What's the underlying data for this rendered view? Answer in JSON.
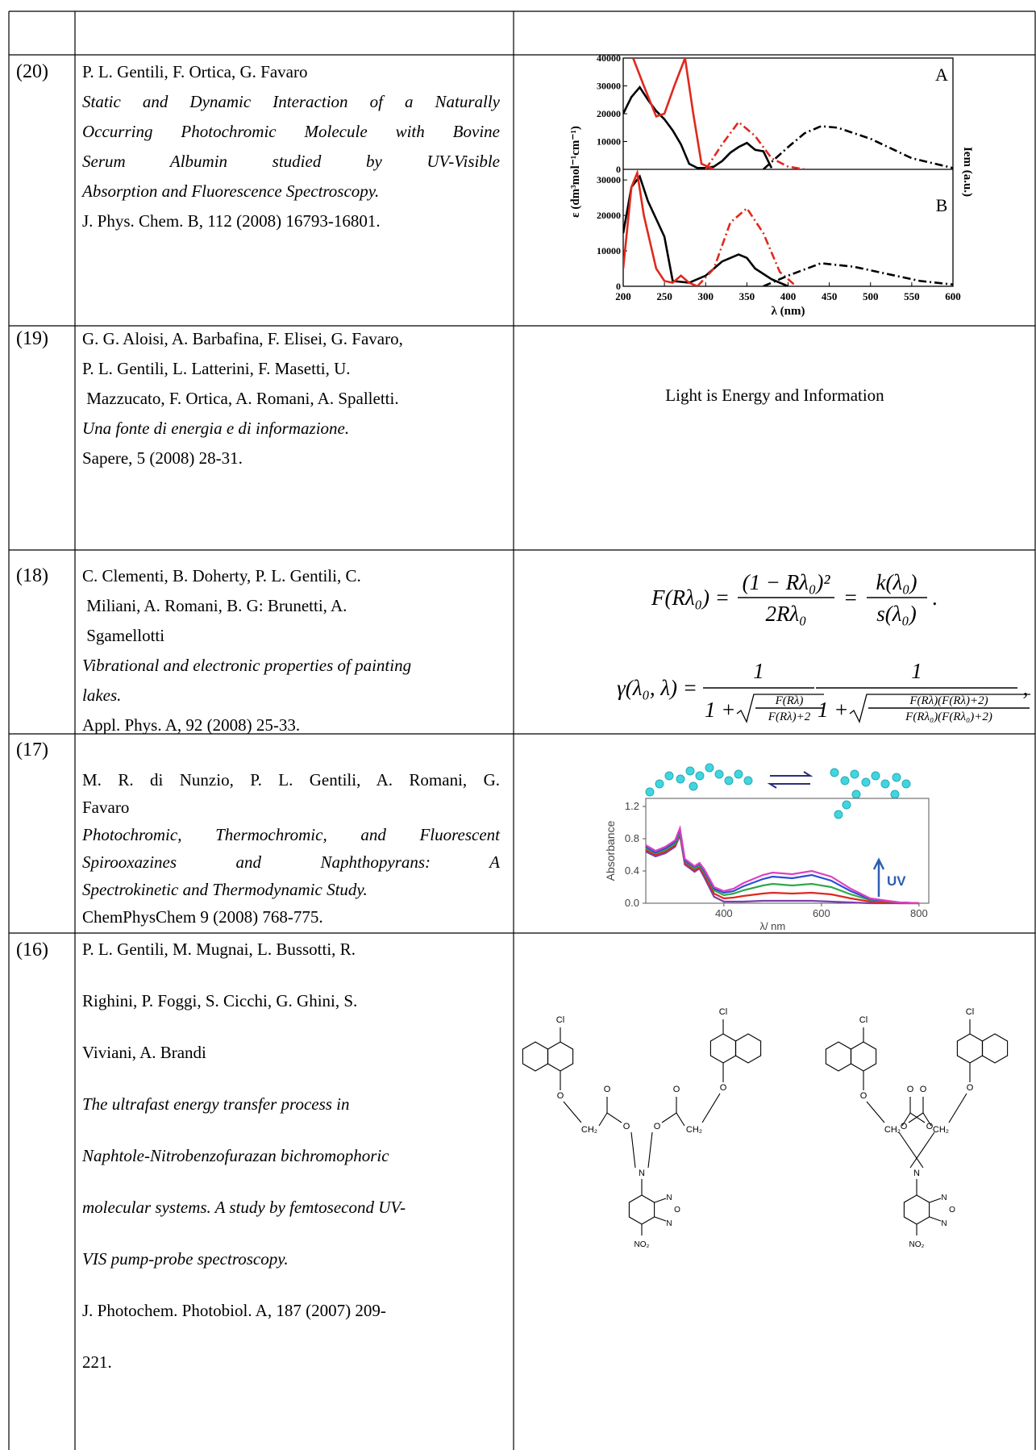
{
  "rows": [
    {
      "number": "(20)",
      "authors": [
        "P. L. Gentili, F. Ortica, G. Favaro"
      ],
      "title": [
        "Static and Dynamic Interaction of a Naturally",
        "Occurring Photochromic Molecule with Bovine",
        "Serum Albumin studied by UV-Visible",
        "Absorption and Fluorescence Spectroscopy."
      ],
      "citation": [
        "J. Phys. Chem. B, 112 (2008) 16793-16801."
      ],
      "figure": {
        "xlim": [
          200,
          600
        ],
        "xticks": [
          200,
          250,
          300,
          350,
          400,
          450,
          500,
          550,
          600
        ],
        "ylabel": "ε (dm³mol⁻¹cm⁻¹)",
        "y2label": "Iem (a.u.)",
        "xlabel": "λ (nm)",
        "panels": [
          {
            "label": "A",
            "ylim": [
              0,
              40000
            ],
            "yticks": [
              0,
              10000,
              20000,
              30000,
              40000
            ],
            "series": [
              {
                "color": "#000000",
                "style": "solid",
                "x": [
                  200,
                  210,
                  220,
                  230,
                  240,
                  250,
                  260,
                  270,
                  280,
                  290,
                  300,
                  310,
                  320,
                  330,
                  340,
                  350,
                  360,
                  370,
                  380
                ],
                "values": [
                  20000,
                  26000,
                  29500,
                  25000,
                  21000,
                  18000,
                  14000,
                  9000,
                  2000,
                  500,
                  500,
                  1000,
                  3000,
                  6000,
                  8000,
                  9500,
                  7000,
                  6500,
                  500
                ]
              },
              {
                "color": "#e0281e",
                "style": "solid",
                "x": [
                  212,
                  225,
                  240,
                  250,
                  262,
                  275,
                  285,
                  295,
                  310
                ],
                "values": [
                  40000,
                  30000,
                  19000,
                  20000,
                  30000,
                  40000,
                  20000,
                  2000,
                  0
                ]
              },
              {
                "color": "#e0281e",
                "style": "dashdot",
                "x": [
                  300,
                  320,
                  340,
                  360,
                  380,
                  400,
                  420
                ],
                "values": [
                  0,
                  9000,
                  17000,
                  12000,
                  4000,
                  1000,
                  0
                ]
              },
              {
                "color": "#000000",
                "style": "dashdot",
                "x": [
                  370,
                  400,
                  420,
                  440,
                  460,
                  500,
                  550,
                  600
                ],
                "values": [
                  0,
                  8000,
                  13000,
                  15500,
                  15000,
                  11000,
                  4000,
                  500
                ]
              }
            ]
          },
          {
            "label": "B",
            "ylim": [
              0,
              33000
            ],
            "yticks": [
              0,
              10000,
              20000,
              30000
            ],
            "series": [
              {
                "color": "#000000",
                "style": "solid",
                "x": [
                  200,
                  210,
                  220,
                  230,
                  240,
                  250,
                  260,
                  280,
                  300,
                  320,
                  340,
                  350,
                  360,
                  380,
                  400
                ],
                "values": [
                  15000,
                  28000,
                  31000,
                  24000,
                  19000,
                  14000,
                  1500,
                  1000,
                  3000,
                  7000,
                  9000,
                  8000,
                  5000,
                  2000,
                  0
                ]
              },
              {
                "color": "#e0281e",
                "style": "solid",
                "x": [
                  200,
                  210,
                  217,
                  225,
                  240,
                  250,
                  260,
                  270,
                  280,
                  290
                ],
                "values": [
                  5000,
                  28000,
                  32000,
                  20000,
                  5000,
                  1500,
                  1000,
                  3000,
                  1000,
                  0
                ]
              },
              {
                "color": "#e0281e",
                "style": "dashdot",
                "x": [
                  290,
                  310,
                  330,
                  350,
                  370,
                  390,
                  410
                ],
                "values": [
                  0,
                  5000,
                  18000,
                  22000,
                  15000,
                  4000,
                  0
                ]
              },
              {
                "color": "#000000",
                "style": "dashdot",
                "x": [
                  370,
                  400,
                  440,
                  480,
                  520,
                  560,
                  600
                ],
                "values": [
                  0,
                  3000,
                  6500,
                  5500,
                  3500,
                  1500,
                  500
                ]
              }
            ]
          }
        ]
      }
    },
    {
      "number": "(19)",
      "authors": [
        "G. G. Aloisi, A. Barbafina, F. Elisei, G. Favaro,",
        "P. L. Gentili, L. Latterini, F. Masetti, U.",
        " Mazzucato, F. Ortica, A. Romani, A. Spalletti."
      ],
      "title": [
        "Una fonte di energia e di informazione."
      ],
      "citation": [
        "Sapere, 5 (2008) 28-31."
      ],
      "figure": {
        "text": "Light is Energy and Information"
      }
    },
    {
      "number": "(18)",
      "authors": [
        "C. Clementi, B. Doherty, P. L. Gentili, C.",
        " Miliani, A. Romani, B. G: Brunetti, A.",
        " Sgamellotti"
      ],
      "title": [
        "Vibrational and electronic properties of painting",
        "lakes."
      ],
      "citation": [
        "Appl. Phys. A, 92 (2008) 25-33."
      ],
      "figure": {
        "equations": [
          {
            "lhs": "F(Rλ₀) =",
            "frac1": {
              "num": "(1 − Rλ₀)²",
              "den": "2Rλ₀"
            },
            "eq": "=",
            "frac2": {
              "num": "k(λ₀)",
              "den": "s(λ₀)"
            },
            "end": "."
          },
          {
            "lhs": "γ(λ₀, λ) =",
            "frac1": {
              "num": "1",
              "den": "1 +",
              "root": {
                "num": "F(Rλ)",
                "den": "F(Rλ)+2"
              }
            },
            "frac2": {
              "num": "1",
              "den": "1 +",
              "root": {
                "num": "F(Rλ)(F(Rλ)+2)",
                "den": "F(Rλ₀)(F(Rλ₀)+2)"
              }
            },
            "end": ","
          }
        ]
      }
    },
    {
      "number": "(17)",
      "authors": [
        "M. R. di Nunzio, P. L. Gentili, A. Romani, G.",
        "Favaro"
      ],
      "title": [
        "Photochromic, Thermochromic, and Fluorescent",
        "Spirooxazines and Naphthopyrans: A",
        "Spectrokinetic and Thermodynamic Study."
      ],
      "citation": [
        "ChemPhysChem 9 (2008) 768-775."
      ],
      "figure": {
        "xlim": [
          240,
          820
        ],
        "xticks": [
          400,
          600,
          800
        ],
        "ylim": [
          0,
          1.3
        ],
        "yticks": [
          {
            "value": 0,
            "label": "0.0"
          },
          0.4,
          0.8,
          1.2
        ],
        "ylabel": "Absorbance",
        "xlabel": "λ/ nm",
        "arrow_label": "UV",
        "x": [
          240,
          260,
          280,
          300,
          310,
          320,
          340,
          350,
          360,
          380,
          400,
          420,
          440,
          480,
          500,
          540,
          580,
          620,
          660,
          700,
          760,
          800
        ],
        "series": [
          {
            "color": "#7a3fb0",
            "values": [
              0.64,
              0.58,
              0.62,
              0.7,
              0.84,
              0.48,
              0.39,
              0.43,
              0.32,
              0.08,
              0.02,
              0.02,
              0.02,
              0.03,
              0.03,
              0.03,
              0.03,
              0.02,
              0.01,
              0,
              0,
              0
            ]
          },
          {
            "color": "#e0281e",
            "values": [
              0.66,
              0.6,
              0.64,
              0.72,
              0.86,
              0.5,
              0.41,
              0.45,
              0.35,
              0.12,
              0.06,
              0.07,
              0.09,
              0.12,
              0.13,
              0.12,
              0.13,
              0.11,
              0.06,
              0.02,
              0,
              0
            ]
          },
          {
            "color": "#2fa84a",
            "values": [
              0.68,
              0.62,
              0.66,
              0.74,
              0.88,
              0.52,
              0.43,
              0.47,
              0.38,
              0.16,
              0.1,
              0.12,
              0.16,
              0.22,
              0.24,
              0.22,
              0.24,
              0.2,
              0.11,
              0.04,
              0.01,
              0
            ]
          },
          {
            "color": "#2a4fd8",
            "values": [
              0.7,
              0.63,
              0.68,
              0.76,
              0.91,
              0.53,
              0.45,
              0.49,
              0.4,
              0.18,
              0.13,
              0.15,
              0.21,
              0.3,
              0.33,
              0.31,
              0.35,
              0.28,
              0.15,
              0.05,
              0.01,
              0
            ]
          },
          {
            "color": "#e040c0",
            "values": [
              0.72,
              0.65,
              0.7,
              0.78,
              0.93,
              0.55,
              0.46,
              0.5,
              0.42,
              0.2,
              0.15,
              0.18,
              0.25,
              0.35,
              0.38,
              0.36,
              0.4,
              0.33,
              0.18,
              0.06,
              0.01,
              0
            ]
          }
        ]
      }
    },
    {
      "number": "(16)",
      "authors": [
        "P. L. Gentili, M. Mugnai, L. Bussotti, R.",
        "Righini, P. Foggi, S. Cicchi, G. Ghini, S.",
        "Viviani, A. Brandi"
      ],
      "title": [
        "The ultrafast energy transfer process in",
        "Naphtole-Nitrobenzofurazan bichromophoric",
        "molecular systems. A study by femtosecond UV-",
        "VIS pump-probe spectroscopy."
      ],
      "citation": [
        "J. Photochem. Photobiol. A, 187 (2007) 209-",
        "221."
      ],
      "figure": {
        "labels": {
          "cl": "Cl",
          "o": "O",
          "ch2": "CH₂",
          "n": "N",
          "no2": "NO₂"
        }
      }
    }
  ]
}
